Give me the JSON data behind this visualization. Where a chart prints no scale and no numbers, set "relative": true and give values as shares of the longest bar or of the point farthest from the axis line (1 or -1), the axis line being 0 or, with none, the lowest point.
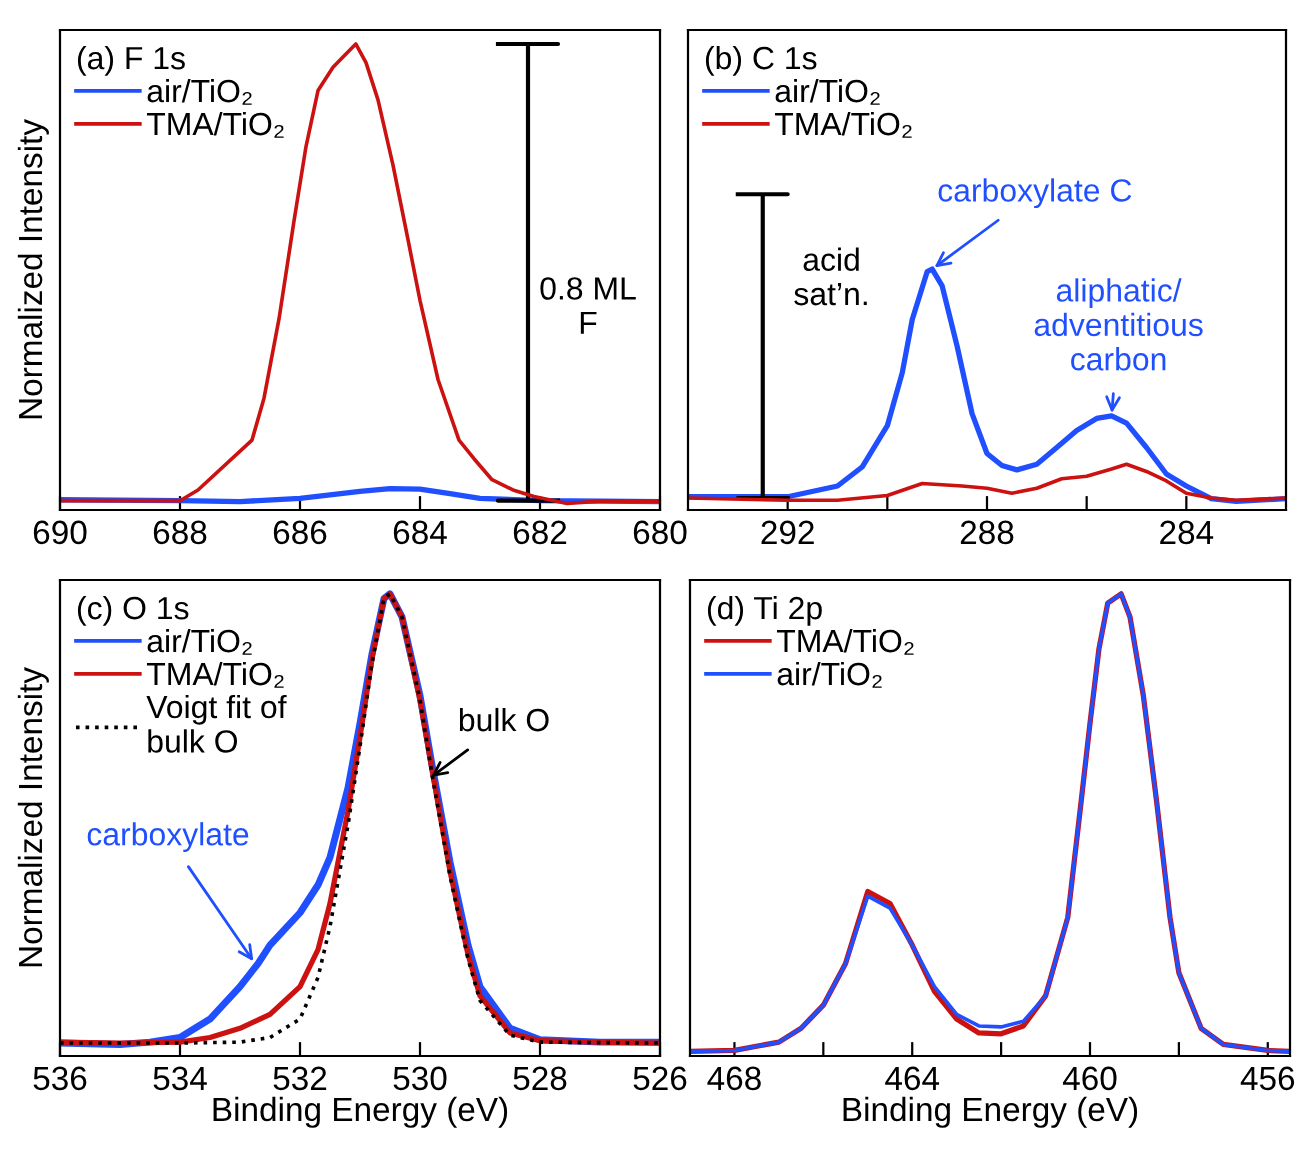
{
  "chart_data": [
    {
      "type": "line",
      "title": "(a) F 1s",
      "ylabel": "Normalized Intensity",
      "relative": true,
      "xlim": [
        690,
        680
      ],
      "xticks": [
        690,
        688,
        686,
        684,
        682,
        680
      ],
      "tick_labels": "x",
      "legend": "top left",
      "line_style": "solid",
      "series": [
        {
          "name": "air/TiO₂",
          "color": "#1f4fff",
          "x": [
            690,
            688,
            687,
            686,
            685,
            684.5,
            684,
            683.5,
            683,
            682,
            680
          ],
          "values": [
            0.022,
            0.02,
            0.018,
            0.025,
            0.04,
            0.046,
            0.045,
            0.035,
            0.025,
            0.02,
            0.018
          ]
        },
        {
          "color": "#000000",
          "x": [
            682.7,
            681.7,
            682.2,
            682.2,
            682.7,
            681.7
          ],
          "values": [
            1.0,
            1.0,
            1.0,
            0.02,
            0.02,
            0.02
          ]
        },
        {
          "name": "TMA/TiO₂",
          "color": "#cc1111",
          "x": [
            690,
            688,
            687.7,
            686.8,
            686.6,
            686.35,
            686.1,
            685.9,
            685.7,
            685.45,
            685.3,
            685.07,
            684.9,
            684.7,
            684.45,
            684.2,
            684.0,
            683.7,
            683.35,
            683.1,
            682.8,
            682.45,
            682.1,
            681.55,
            681,
            680
          ],
          "values": [
            0.02,
            0.02,
            0.043,
            0.15,
            0.24,
            0.41,
            0.62,
            0.78,
            0.9,
            0.95,
            0.97,
            1.0,
            0.96,
            0.88,
            0.74,
            0.58,
            0.45,
            0.28,
            0.15,
            0.11,
            0.065,
            0.043,
            0.029,
            0.014,
            0.019,
            0.019
          ]
        }
      ],
      "annotations": [
        "0.8 ML\nF"
      ]
    },
    {
      "type": "line",
      "title": "(b) C 1s",
      "relative": true,
      "xlim": [
        294,
        282
      ],
      "xticks": [
        292,
        {
          "value": 290,
          "label": null
        },
        288,
        {
          "value": 286,
          "label": null
        },
        284
      ],
      "tick_labels": "x",
      "legend": "top left",
      "line_style": "solid",
      "series": [
        {
          "name": "air/TiO₂",
          "color": "#1f4fff",
          "x": [
            294,
            292,
            291,
            290.5,
            290,
            289.7,
            289.5,
            289.2,
            289.1,
            288.9,
            288.6,
            288.3,
            288.0,
            287.7,
            287.4,
            287,
            286.6,
            286.2,
            285.8,
            285.5,
            285.2,
            284.8,
            284.4,
            284,
            283.5,
            283,
            282
          ],
          "values": [
            0.042,
            0.042,
            0.076,
            0.137,
            0.267,
            0.435,
            0.603,
            0.755,
            0.763,
            0.71,
            0.519,
            0.305,
            0.179,
            0.141,
            0.127,
            0.145,
            0.198,
            0.252,
            0.29,
            0.298,
            0.275,
            0.198,
            0.114,
            0.076,
            0.036,
            0.027,
            0.036
          ]
        },
        {
          "color": "#000000",
          "x": [
            293.0,
            292.0,
            292.5,
            292.5,
            293.0,
            292.0
          ],
          "values": [
            1.0,
            1.0,
            1.0,
            0.038,
            0.038,
            0.038
          ]
        },
        {
          "name": "TMA/TiO₂",
          "color": "#cc1111",
          "x": [
            294,
            292,
            291,
            290,
            289.3,
            288.5,
            288,
            287.5,
            287,
            286.5,
            286,
            285.5,
            285.2,
            284.8,
            284.4,
            284,
            283.5,
            283,
            282
          ],
          "values": [
            0.038,
            0.031,
            0.031,
            0.046,
            0.084,
            0.076,
            0.069,
            0.053,
            0.069,
            0.099,
            0.107,
            0.13,
            0.145,
            0.122,
            0.092,
            0.053,
            0.038,
            0.031,
            0.038
          ]
        }
      ],
      "annotations": [
        "acid\nsat’n.",
        {
          "text": "carboxylate C",
          "x": 289.1,
          "y": 0.763
        },
        {
          "text": "aliphatic/\nadventitious\ncarbon",
          "x": 285.5,
          "y": 0.298
        }
      ]
    },
    {
      "type": "line",
      "title": "(c) O 1s",
      "xlabel": "Binding Energy (eV)",
      "ylabel": "Normalized Intensity",
      "relative": true,
      "xlim": [
        536,
        526
      ],
      "xticks": [
        536,
        534,
        532,
        530,
        528,
        526
      ],
      "tick_labels": "x",
      "legend": "top left",
      "line_style": "solid",
      "series": [
        {
          "name": "air/TiO₂",
          "color": "#1f4fff",
          "x": [
            536,
            535,
            534.5,
            534,
            533.5,
            533,
            532.7,
            532.5,
            532,
            531.7,
            531.5,
            531.2,
            531,
            530.8,
            530.6,
            530.5,
            530.3,
            530,
            529.8,
            529.5,
            529.2,
            529,
            528.5,
            528,
            527,
            526
          ],
          "values": [
            0.028,
            0.025,
            0.03,
            0.04,
            0.08,
            0.15,
            0.2,
            0.24,
            0.31,
            0.37,
            0.43,
            0.58,
            0.72,
            0.87,
            0.99,
            1.0,
            0.95,
            0.78,
            0.63,
            0.42,
            0.24,
            0.15,
            0.06,
            0.035,
            0.03,
            0.03
          ]
        },
        {
          "name": "TMA/TiO₂",
          "color": "#cc1111",
          "x": [
            536,
            535,
            534,
            533.5,
            533,
            532.5,
            532,
            531.7,
            531.5,
            531.2,
            531,
            530.8,
            530.6,
            530.5,
            530.3,
            530,
            529.8,
            529.5,
            529.2,
            529,
            528.5,
            528,
            527,
            526
          ],
          "values": [
            0.03,
            0.028,
            0.03,
            0.04,
            0.06,
            0.09,
            0.15,
            0.23,
            0.33,
            0.53,
            0.69,
            0.86,
            0.99,
            1.0,
            0.95,
            0.77,
            0.62,
            0.4,
            0.22,
            0.13,
            0.05,
            0.033,
            0.03,
            0.028
          ]
        },
        {
          "name": "Voigt fit of\nbulk O",
          "color": "#000000",
          "line_style": "dotted",
          "x": [
            536,
            534,
            533,
            532.5,
            532,
            531.7,
            531.5,
            531.2,
            531,
            530.8,
            530.6,
            530.5,
            530.3,
            530,
            529.8,
            529.5,
            529.2,
            529,
            528.5,
            528,
            526
          ],
          "values": [
            0.028,
            0.028,
            0.03,
            0.04,
            0.08,
            0.17,
            0.28,
            0.5,
            0.67,
            0.85,
            0.99,
            1.0,
            0.95,
            0.77,
            0.61,
            0.39,
            0.21,
            0.12,
            0.045,
            0.03,
            0.028
          ]
        }
      ],
      "annotations": [
        {
          "text": "bulk O",
          "x": 529.85,
          "y": 0.6
        },
        {
          "text": "carboxylate",
          "x": 532.75,
          "y": 0.2
        }
      ]
    },
    {
      "type": "line",
      "title": "(d) Ti 2p",
      "xlabel": "Binding Energy (eV)",
      "relative": true,
      "xlim": [
        469,
        455.5
      ],
      "xticks": [
        468,
        {
          "value": 466,
          "label": null
        },
        464,
        {
          "value": 462,
          "label": null
        },
        460,
        {
          "value": 458,
          "label": null
        },
        456
      ],
      "tick_labels": "x",
      "legend": "top left",
      "line_style": "solid",
      "series": [
        {
          "name": "TMA/TiO₂",
          "color": "#cc1111",
          "x": [
            469,
            468,
            467,
            466.5,
            466,
            465.5,
            465,
            464.5,
            464,
            463.5,
            463,
            462.5,
            462,
            461.5,
            461,
            460.5,
            460.2,
            460,
            459.8,
            459.6,
            459.3,
            459.1,
            458.8,
            458.5,
            458.2,
            458,
            457.5,
            457,
            456,
            455.5
          ],
          "values": [
            0.01,
            0.012,
            0.03,
            0.06,
            0.11,
            0.2,
            0.356,
            0.33,
            0.24,
            0.14,
            0.08,
            0.05,
            0.048,
            0.065,
            0.13,
            0.3,
            0.55,
            0.72,
            0.88,
            0.98,
            1.0,
            0.95,
            0.78,
            0.55,
            0.3,
            0.18,
            0.06,
            0.025,
            0.012,
            0.01
          ]
        },
        {
          "name": "air/TiO₂",
          "color": "#1f4fff",
          "x": [
            469,
            468,
            467,
            466.5,
            466,
            465.5,
            465,
            464.5,
            464,
            463.5,
            463,
            462.5,
            462,
            461.5,
            461,
            460.5,
            460.2,
            460,
            459.8,
            459.6,
            459.3,
            459.1,
            458.8,
            458.5,
            458.2,
            458,
            457.5,
            457,
            456,
            455.5
          ],
          "values": [
            0.01,
            0.012,
            0.03,
            0.06,
            0.11,
            0.2,
            0.346,
            0.32,
            0.24,
            0.15,
            0.09,
            0.065,
            0.063,
            0.075,
            0.13,
            0.3,
            0.55,
            0.72,
            0.88,
            0.98,
            1.0,
            0.95,
            0.78,
            0.55,
            0.3,
            0.18,
            0.06,
            0.025,
            0.012,
            0.01
          ]
        }
      ]
    }
  ]
}
